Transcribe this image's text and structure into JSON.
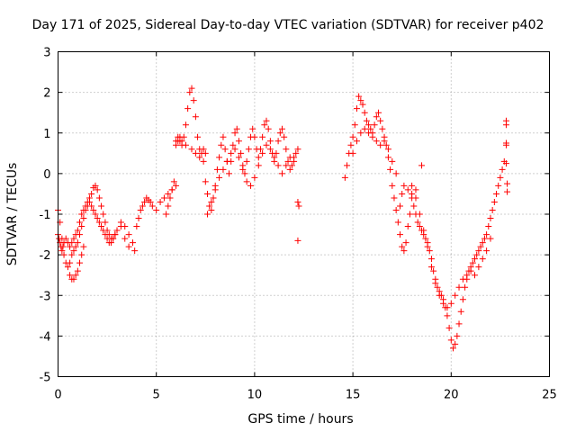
{
  "chart_data": {
    "type": "scatter",
    "title": "Day 171 of 2025, Sidereal Day-to-day VTEC variation (SDTVAR) for receiver p402",
    "xlabel": "GPS time / hours",
    "ylabel": "SDTVAR / TECUs",
    "xlim": [
      0,
      25
    ],
    "ylim": [
      -5,
      3
    ],
    "xticks": [
      0,
      5,
      10,
      15,
      20,
      25
    ],
    "yticks": [
      -5,
      -4,
      -3,
      -2,
      -1,
      0,
      1,
      2,
      3
    ],
    "grid": true,
    "marker": "plus",
    "color": "#ff0000",
    "series": [
      {
        "name": "p402",
        "x": [
          0.0,
          0.05,
          0.1,
          0.15,
          0.2,
          0.25,
          0.3,
          0.4,
          0.5,
          0.6,
          0.7,
          0.8,
          0.9,
          1.0,
          1.1,
          1.2,
          1.3,
          1.4,
          1.5,
          1.6,
          1.7,
          1.8,
          1.9,
          2.0,
          2.1,
          2.2,
          2.3,
          2.4,
          2.5,
          2.6,
          2.7,
          2.8,
          2.9,
          3.0,
          3.2,
          3.4,
          3.6,
          3.8,
          3.9,
          0.0,
          0.1,
          0.2,
          0.3,
          0.4,
          0.5,
          0.6,
          0.7,
          0.8,
          0.9,
          1.0,
          1.1,
          1.2,
          1.3,
          1.4,
          1.5,
          1.6,
          1.7,
          1.8,
          1.9,
          2.0,
          2.1,
          2.2,
          2.3,
          2.4,
          2.5,
          2.6,
          2.7,
          2.8,
          2.9,
          3.0,
          3.2,
          3.4,
          3.6,
          0.6,
          0.7,
          0.8,
          0.9,
          1.0,
          1.1,
          1.2,
          1.3,
          4.0,
          4.1,
          4.2,
          4.3,
          4.4,
          4.5,
          4.6,
          4.7,
          4.8,
          5.0,
          5.2,
          5.4,
          5.6,
          5.8,
          6.0,
          5.5,
          5.6,
          5.7,
          5.8,
          5.9,
          6.0,
          6.1,
          6.2,
          6.3,
          6.4,
          6.5,
          6.6,
          6.7,
          6.8,
          6.9,
          7.0,
          7.1,
          7.2,
          7.3,
          7.4,
          7.5,
          6.0,
          6.1,
          6.2,
          6.3,
          6.5,
          6.8,
          7.0,
          7.2,
          7.4,
          7.5,
          7.6,
          7.7,
          7.8,
          7.9,
          8.0,
          8.1,
          8.2,
          8.3,
          8.4,
          8.5,
          8.6,
          8.7,
          8.8,
          8.9,
          9.0,
          9.1,
          9.2,
          9.3,
          9.4,
          9.5,
          9.6,
          9.7,
          9.8,
          9.9,
          10.0,
          10.1,
          10.2,
          10.3,
          10.4,
          10.5,
          10.6,
          10.7,
          10.8,
          10.9,
          11.0,
          11.1,
          11.2,
          11.3,
          11.4,
          11.5,
          11.6,
          11.7,
          11.8,
          11.9,
          12.0,
          12.1,
          12.2,
          7.6,
          7.8,
          8.0,
          8.2,
          8.4,
          8.6,
          8.8,
          9.0,
          9.2,
          9.4,
          9.6,
          9.8,
          10.0,
          10.2,
          10.4,
          10.6,
          10.8,
          11.0,
          11.2,
          11.4,
          11.6,
          11.8,
          12.0,
          12.2,
          12.25,
          12.2,
          14.6,
          14.7,
          14.8,
          14.9,
          15.0,
          15.1,
          15.2,
          15.3,
          15.4,
          15.5,
          15.6,
          15.7,
          15.8,
          15.9,
          16.0,
          16.1,
          16.2,
          16.3,
          16.4,
          16.5,
          16.6,
          16.7,
          16.8,
          16.9,
          17.0,
          17.1,
          17.2,
          17.3,
          17.4,
          17.5,
          17.6,
          17.7,
          17.8,
          17.9,
          15.0,
          15.2,
          15.4,
          15.6,
          15.8,
          16.0,
          16.2,
          16.4,
          16.6,
          16.8,
          17.0,
          17.2,
          17.4,
          17.5,
          17.6,
          17.8,
          18.0,
          18.2,
          18.0,
          18.1,
          18.2,
          18.3,
          18.4,
          18.5,
          18.6,
          18.7,
          18.8,
          18.9,
          19.0,
          19.1,
          19.2,
          19.3,
          19.4,
          19.5,
          19.6,
          19.7,
          19.8,
          19.9,
          20.0,
          20.1,
          20.2,
          20.3,
          20.4,
          20.5,
          20.6,
          20.7,
          20.8,
          20.9,
          21.0,
          21.1,
          21.2,
          21.3,
          21.4,
          21.5,
          21.6,
          21.7,
          21.8,
          21.9,
          22.0,
          22.1,
          22.2,
          22.3,
          22.4,
          22.5,
          22.6,
          22.7,
          18.0,
          18.2,
          18.4,
          18.6,
          18.8,
          19.0,
          19.2,
          19.4,
          19.6,
          19.8,
          20.0,
          20.2,
          20.4,
          20.6,
          20.8,
          21.0,
          21.2,
          21.4,
          21.6,
          21.8,
          22.0,
          18.5,
          22.8,
          22.8,
          22.8,
          22.8,
          22.8,
          22.85,
          22.85
        ],
        "y": [
          -1.5,
          -1.6,
          -1.7,
          -1.8,
          -1.9,
          -1.8,
          -1.7,
          -1.6,
          -1.7,
          -1.8,
          -1.7,
          -1.6,
          -1.5,
          -1.4,
          -1.2,
          -1.0,
          -0.9,
          -0.8,
          -0.7,
          -0.6,
          -0.5,
          -0.35,
          -0.3,
          -0.4,
          -0.6,
          -0.8,
          -1.0,
          -1.2,
          -1.4,
          -1.5,
          -1.6,
          -1.6,
          -1.5,
          -1.4,
          -1.2,
          -1.3,
          -1.5,
          -1.7,
          -1.9,
          -0.9,
          -1.2,
          -1.6,
          -2.0,
          -2.2,
          -2.3,
          -2.2,
          -2.0,
          -1.9,
          -1.8,
          -1.7,
          -1.5,
          -1.3,
          -1.1,
          -0.9,
          -0.8,
          -0.7,
          -0.8,
          -0.9,
          -1.0,
          -1.1,
          -1.2,
          -1.3,
          -1.4,
          -1.5,
          -1.6,
          -1.7,
          -1.7,
          -1.6,
          -1.5,
          -1.4,
          -1.3,
          -1.6,
          -1.8,
          -2.5,
          -2.6,
          -2.6,
          -2.5,
          -2.4,
          -2.2,
          -2.0,
          -1.8,
          -1.3,
          -1.1,
          -0.9,
          -0.8,
          -0.7,
          -0.6,
          -0.65,
          -0.7,
          -0.8,
          -0.9,
          -0.7,
          -0.6,
          -0.5,
          -0.4,
          -0.3,
          -1.0,
          -0.8,
          -0.6,
          -0.4,
          -0.2,
          0.8,
          0.9,
          0.8,
          0.7,
          0.9,
          1.2,
          1.6,
          2.0,
          2.1,
          1.8,
          1.4,
          0.9,
          0.6,
          0.5,
          0.6,
          0.5,
          0.7,
          0.8,
          0.9,
          0.8,
          0.7,
          0.6,
          0.5,
          0.4,
          0.3,
          -0.2,
          -0.5,
          -0.8,
          -0.9,
          -0.6,
          -0.3,
          0.1,
          0.4,
          0.7,
          0.9,
          0.6,
          0.3,
          0.0,
          0.3,
          0.7,
          1.0,
          1.1,
          0.8,
          0.5,
          0.2,
          0.0,
          0.3,
          0.6,
          0.9,
          1.1,
          0.9,
          0.6,
          0.4,
          0.6,
          0.9,
          1.2,
          1.3,
          1.1,
          0.8,
          0.5,
          0.3,
          0.5,
          0.8,
          1.0,
          1.1,
          0.9,
          0.6,
          0.3,
          0.1,
          0.2,
          0.4,
          0.5,
          0.6,
          -1.0,
          -0.7,
          -0.4,
          -0.1,
          0.1,
          0.3,
          0.5,
          0.6,
          0.4,
          0.1,
          -0.2,
          -0.3,
          -0.1,
          0.2,
          0.5,
          0.7,
          0.6,
          0.4,
          0.2,
          0.0,
          0.2,
          0.4,
          0.3,
          -0.7,
          -0.8,
          -1.65,
          -0.1,
          0.2,
          0.5,
          0.7,
          0.9,
          1.2,
          1.6,
          1.9,
          1.8,
          1.7,
          1.5,
          1.3,
          1.2,
          1.1,
          1.0,
          1.2,
          1.4,
          1.5,
          1.3,
          1.1,
          0.9,
          0.7,
          0.4,
          0.1,
          -0.3,
          -0.6,
          -0.9,
          -1.2,
          -1.5,
          -1.8,
          -1.9,
          -1.7,
          -1.3,
          -1.0,
          0.5,
          0.8,
          1.0,
          1.1,
          1.0,
          0.9,
          0.8,
          0.7,
          0.8,
          0.6,
          0.3,
          0.0,
          -0.8,
          -0.5,
          -0.3,
          -0.4,
          -0.6,
          -0.4,
          -0.5,
          -0.8,
          -1.0,
          -1.2,
          -1.3,
          -1.4,
          -1.5,
          -1.6,
          -1.7,
          -1.9,
          -2.1,
          -2.4,
          -2.6,
          -2.8,
          -2.9,
          -3.0,
          -3.1,
          -3.3,
          -3.5,
          -3.8,
          -4.1,
          -4.3,
          -4.2,
          -4.0,
          -3.7,
          -3.4,
          -3.1,
          -2.8,
          -2.6,
          -2.4,
          -2.3,
          -2.2,
          -2.1,
          -2.0,
          -1.9,
          -1.8,
          -1.7,
          -1.6,
          -1.5,
          -1.3,
          -1.1,
          -0.9,
          -0.7,
          -0.5,
          -0.3,
          -0.1,
          0.1,
          0.3,
          -0.3,
          -0.6,
          -1.0,
          -1.4,
          -1.8,
          -2.3,
          -2.7,
          -3.0,
          -3.2,
          -3.3,
          -3.2,
          -3.0,
          -2.8,
          -2.6,
          -2.5,
          -2.4,
          -2.5,
          -2.3,
          -2.1,
          -1.9,
          -1.6,
          0.2,
          0.75,
          0.7,
          1.3,
          1.2,
          0.25,
          -0.25,
          -0.45
        ]
      }
    ]
  }
}
